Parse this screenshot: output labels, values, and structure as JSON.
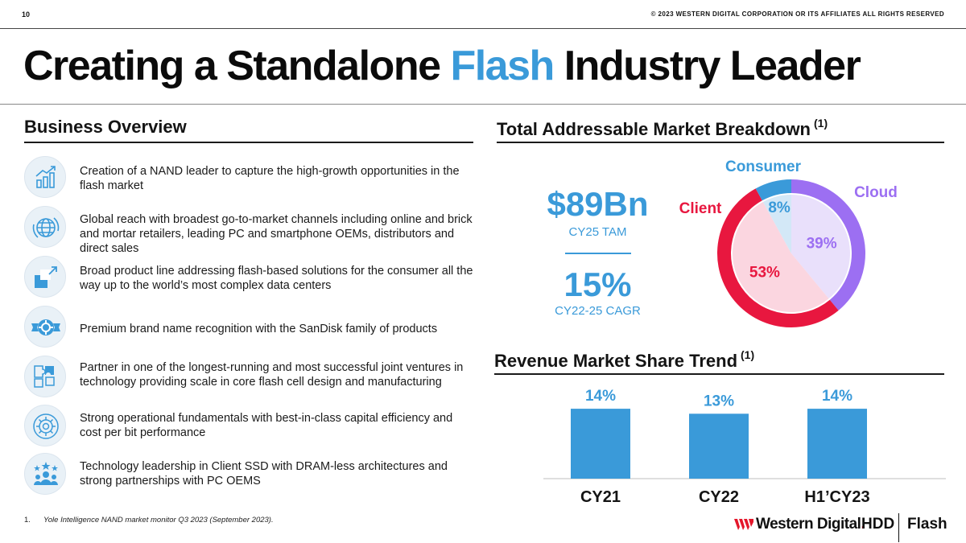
{
  "header": {
    "page_number": "10",
    "copyright": "© 2023 WESTERN DIGITAL CORPORATION OR ITS AFFILIATES  ALL RIGHTS RESERVED"
  },
  "title": {
    "part1": "Creating a Standalone ",
    "accent": "Flash",
    "part2": " Industry Leader",
    "accent_color": "#3a9ad9"
  },
  "business_overview": {
    "heading": "Business Overview",
    "items": [
      {
        "icon": "growth-chart-icon",
        "text": "Creation of a NAND leader to capture the high-growth opportunities in the flash market"
      },
      {
        "icon": "globe-icon",
        "text": "Global reach with broadest go-to-market channels including online and brick and mortar retailers, leading PC and smartphone OEMs, distributors and direct sales"
      },
      {
        "icon": "expand-arrow-icon",
        "text": "Broad product line addressing flash-based solutions for the consumer all the way up to the world’s most complex data centers"
      },
      {
        "icon": "badge-gear-icon",
        "text": "Premium brand name recognition with the SanDisk family of products"
      },
      {
        "icon": "puzzle-icon",
        "text": "Partner in one of the longest-running and most successful joint ventures in technology providing scale in core flash cell design and manufacturing"
      },
      {
        "icon": "gear-icon",
        "text": "Strong operational fundamentals with best-in-class capital efficiency and cost per bit performance"
      },
      {
        "icon": "team-stars-icon",
        "text": "Technology leadership in Client SSD with DRAM-less architectures and strong partnerships with PC OEMS"
      }
    ]
  },
  "tam": {
    "heading": "Total Addressable Market Breakdown",
    "footnote_ref": "(1)",
    "value": "$89Bn",
    "value_label": "CY25 TAM",
    "cagr": "15%",
    "cagr_label": "CY22-25 CAGR"
  },
  "share": {
    "heading": "Revenue Market Share Trend",
    "footnote_ref": "(1)"
  },
  "chart_data": [
    {
      "type": "pie",
      "title": "Total Addressable Market Breakdown",
      "categories": [
        "Cloud",
        "Client",
        "Consumer"
      ],
      "values": [
        39,
        53,
        8
      ],
      "labels": [
        "39%",
        "53%",
        "8%"
      ],
      "colors": {
        "Cloud": "#9c6ff2",
        "Client": "#e8173f",
        "Consumer": "#3a9ad9"
      },
      "inner_colors": {
        "Cloud": "#e9e0fb",
        "Client": "#fbd6e0",
        "Consumer": "#d3e8f7"
      }
    },
    {
      "type": "bar",
      "title": "Revenue Market Share Trend",
      "categories": [
        "CY21",
        "CY22",
        "H1’CY23"
      ],
      "values": [
        14,
        13,
        14
      ],
      "labels": [
        "14%",
        "13%",
        "14%"
      ],
      "bar_color": "#3a9ad9",
      "label_color": "#3a9ad9"
    }
  ],
  "footnote": {
    "number": "1.",
    "text": "Yole Intelligence  NAND market monitor Q3 2023 (September  2023)."
  },
  "brand": {
    "name": "Western Digital",
    "dot": ".",
    "hdd": "HDD",
    "flash": "Flash",
    "mark_color": "#e4172b"
  }
}
